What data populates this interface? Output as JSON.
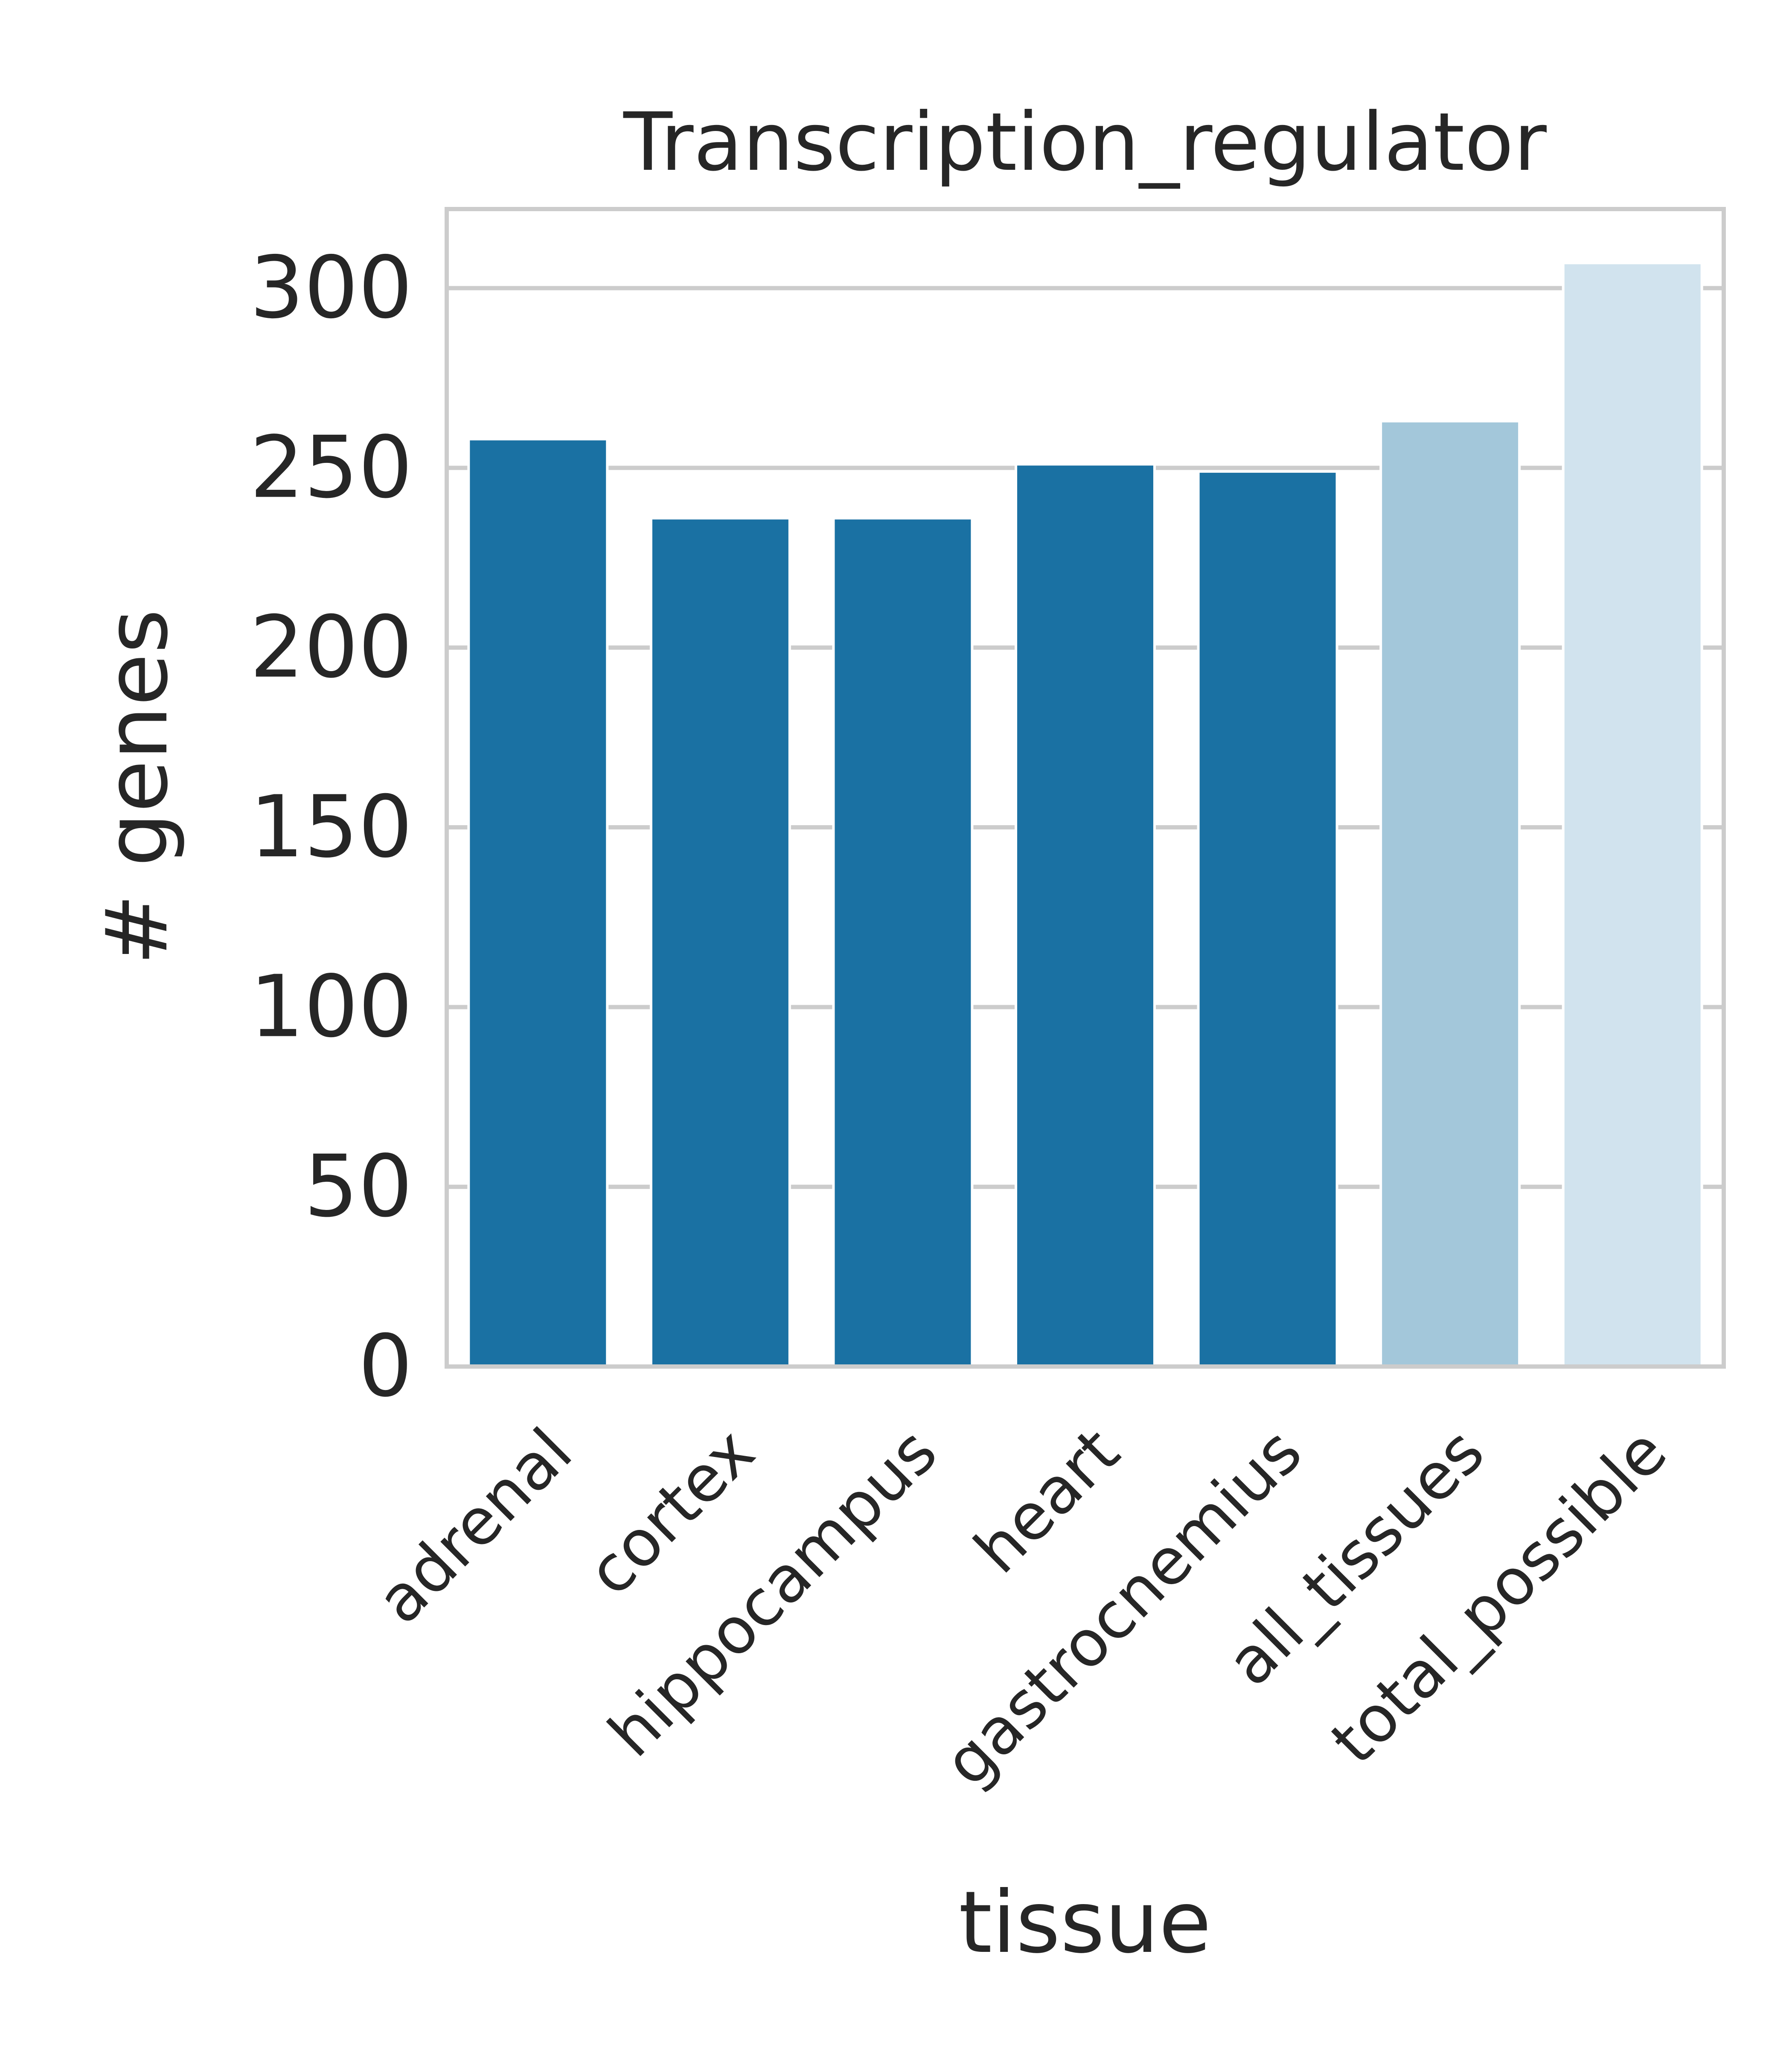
{
  "chart_data": {
    "type": "bar",
    "title": "Transcription_regulator",
    "xlabel": "tissue",
    "ylabel": "# genes",
    "categories": [
      "adrenal",
      "cortex",
      "hippocampus",
      "heart",
      "gastrocnemius",
      "all_tissues",
      "total_possible"
    ],
    "values": [
      258,
      236,
      236,
      251,
      249,
      263,
      307
    ],
    "bar_colors": [
      "#1a71a3",
      "#1a71a3",
      "#1a71a3",
      "#1a71a3",
      "#1a71a3",
      "#a3c7da",
      "#d1e3ee"
    ],
    "ylim": [
      0,
      322
    ],
    "yticks": [
      0,
      50,
      100,
      150,
      200,
      250,
      300
    ],
    "grid": true,
    "legend": "none",
    "colors": {
      "text": "#262626",
      "grid": "#cccccc",
      "spine": "#cccccc",
      "background": "#ffffff"
    }
  }
}
